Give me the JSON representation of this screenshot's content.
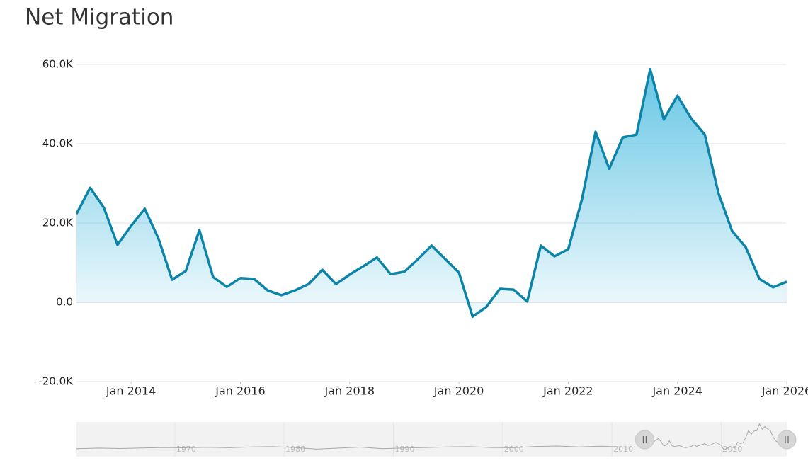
{
  "chart_data": {
    "type": "area",
    "title": "Net Migration",
    "x": [
      "2013-01",
      "2013-04",
      "2013-07",
      "2013-10",
      "2014-01",
      "2014-04",
      "2014-07",
      "2014-10",
      "2015-01",
      "2015-04",
      "2015-07",
      "2015-10",
      "2016-01",
      "2016-04",
      "2016-07",
      "2016-10",
      "2017-01",
      "2017-04",
      "2017-07",
      "2017-10",
      "2018-01",
      "2018-04",
      "2018-07",
      "2018-10",
      "2019-01",
      "2019-04",
      "2019-07",
      "2019-10",
      "2020-01",
      "2020-04",
      "2020-07",
      "2020-10",
      "2021-01",
      "2021-04",
      "2021-07",
      "2021-10",
      "2022-01",
      "2022-04",
      "2022-07",
      "2022-10",
      "2023-01",
      "2023-04",
      "2023-07",
      "2023-10",
      "2024-01",
      "2024-04",
      "2024-07",
      "2024-10",
      "2025-01",
      "2025-04",
      "2025-07",
      "2025-10",
      "2026-01"
    ],
    "series": [
      {
        "name": "Net Migration",
        "color": "#0b84a8",
        "values": [
          22300,
          28900,
          23900,
          14500,
          19300,
          23600,
          16100,
          5700,
          7900,
          18200,
          6400,
          3900,
          6100,
          5900,
          3000,
          1800,
          3000,
          4600,
          8200,
          4600,
          7000,
          9100,
          11300,
          7100,
          7700,
          10900,
          14300,
          10900,
          7500,
          -3600,
          -1200,
          3400,
          3200,
          200,
          14300,
          11600,
          13400,
          25900,
          43000,
          33700,
          41600,
          42300,
          58800,
          46100,
          52100,
          46400,
          42300,
          27500,
          18000,
          13900,
          5900,
          3800,
          5200
        ]
      }
    ],
    "xlim": [
      "2013-01",
      "2026-01"
    ],
    "xticks": [
      {
        "value": "2014-01",
        "label": "Jan 2014"
      },
      {
        "value": "2016-01",
        "label": "Jan 2016"
      },
      {
        "value": "2018-01",
        "label": "Jan 2018"
      },
      {
        "value": "2020-01",
        "label": "Jan 2020"
      },
      {
        "value": "2022-01",
        "label": "Jan 2022"
      },
      {
        "value": "2024-01",
        "label": "Jan 2024"
      },
      {
        "value": "2026-01",
        "label": "Jan 2026"
      }
    ],
    "ylim": [
      -20000,
      60000
    ],
    "yticks": [
      {
        "value": -20000,
        "label": "-20.0K"
      },
      {
        "value": 0,
        "label": "0.0"
      },
      {
        "value": 20000,
        "label": "20.0K"
      },
      {
        "value": 40000,
        "label": "40.0K"
      },
      {
        "value": 60000,
        "label": "60.0K"
      }
    ],
    "grid": true,
    "navigator": {
      "x": [
        1961,
        1963,
        1965,
        1967,
        1969,
        1971,
        1973,
        1975,
        1977,
        1979,
        1981,
        1983,
        1985,
        1987,
        1989,
        1991,
        1993,
        1995,
        1997,
        1999,
        2001,
        2003,
        2005,
        2007,
        2009,
        2011
      ],
      "values": [
        -1000,
        500,
        -500,
        1000,
        2000,
        1500,
        2500,
        1500,
        3500,
        4000,
        2000,
        -2000,
        500,
        3000,
        -1000,
        1000,
        2000,
        3500,
        4000,
        2000,
        1500,
        4500,
        5500,
        3500,
        5000,
        3000
      ],
      "xlim": [
        1961,
        2026
      ],
      "xticks": [
        1970,
        1980,
        1990,
        2000,
        2010,
        2020
      ]
    }
  }
}
